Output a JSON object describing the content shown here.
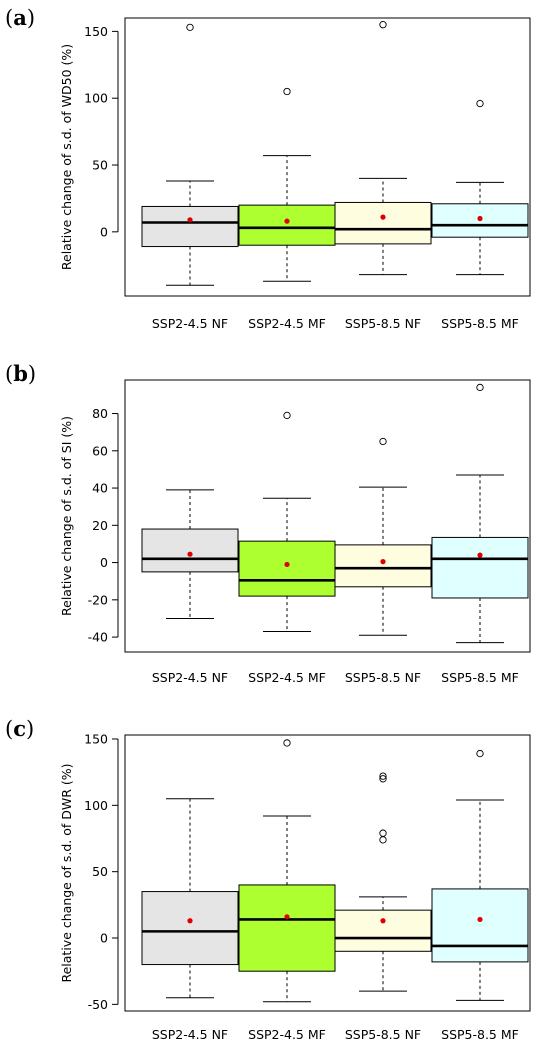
{
  "categories": [
    "SSP2-4.5 NF",
    "SSP2-4.5 MF",
    "SSP5-8.5 NF",
    "SSP5-8.5 MF"
  ],
  "category_colors": [
    "#e5e5e5",
    "#adff2f",
    "#fffde0",
    "#e0ffff"
  ],
  "mean_marker_color": "#e00000",
  "chart_data": [
    {
      "type": "box",
      "panel": "a",
      "ylabel": "Relative change of s.d. of WD50 (%)",
      "ylim": [
        -48,
        160
      ],
      "yticks": [
        0,
        50,
        100,
        150
      ],
      "categories": [
        "SSP2-4.5 NF",
        "SSP2-4.5 MF",
        "SSP5-8.5 NF",
        "SSP5-8.5 MF"
      ],
      "boxes": [
        {
          "name": "SSP2-4.5 NF",
          "whisker_low": -40,
          "q1": -11,
          "median": 7,
          "q3": 19,
          "whisker_high": 38,
          "mean": 9,
          "outliers": [
            153
          ]
        },
        {
          "name": "SSP2-4.5 MF",
          "whisker_low": -37,
          "q1": -10,
          "median": 3,
          "q3": 20,
          "whisker_high": 57,
          "mean": 8,
          "outliers": [
            105
          ]
        },
        {
          "name": "SSP5-8.5 NF",
          "whisker_low": -32,
          "q1": -9,
          "median": 2,
          "q3": 22,
          "whisker_high": 40,
          "mean": 11,
          "outliers": [
            155
          ]
        },
        {
          "name": "SSP5-8.5 MF",
          "whisker_low": -32,
          "q1": -4,
          "median": 5,
          "q3": 21,
          "whisker_high": 37,
          "mean": 10,
          "outliers": [
            96
          ]
        }
      ]
    },
    {
      "type": "box",
      "panel": "b",
      "ylabel": "Relative change of s.d. of SI (%)",
      "ylim": [
        -48,
        98
      ],
      "yticks": [
        -40,
        -20,
        0,
        20,
        40,
        60,
        80
      ],
      "categories": [
        "SSP2-4.5 NF",
        "SSP2-4.5 MF",
        "SSP5-8.5 NF",
        "SSP5-8.5 MF"
      ],
      "boxes": [
        {
          "name": "SSP2-4.5 NF",
          "whisker_low": -30,
          "q1": -5,
          "median": 2,
          "q3": 18,
          "whisker_high": 39,
          "mean": 4.5,
          "outliers": []
        },
        {
          "name": "SSP2-4.5 MF",
          "whisker_low": -37,
          "q1": -18,
          "median": -9.5,
          "q3": 11.5,
          "whisker_high": 34.5,
          "mean": -1,
          "outliers": [
            79
          ]
        },
        {
          "name": "SSP5-8.5 NF",
          "whisker_low": -39,
          "q1": -13,
          "median": -3,
          "q3": 9.5,
          "whisker_high": 40.5,
          "mean": 0.5,
          "outliers": [
            65
          ]
        },
        {
          "name": "SSP5-8.5 MF",
          "whisker_low": -43,
          "q1": -19,
          "median": 2,
          "q3": 13.5,
          "whisker_high": 47,
          "mean": 4,
          "outliers": [
            94
          ]
        }
      ]
    },
    {
      "type": "box",
      "panel": "c",
      "ylabel": "Relative change of s.d. of DWR (%)",
      "ylim": [
        -55,
        153
      ],
      "yticks": [
        -50,
        0,
        50,
        100,
        150
      ],
      "categories": [
        "SSP2-4.5 NF",
        "SSP2-4.5 MF",
        "SSP5-8.5 NF",
        "SSP5-8.5 MF"
      ],
      "boxes": [
        {
          "name": "SSP2-4.5 NF",
          "whisker_low": -45,
          "q1": -20,
          "median": 5,
          "q3": 35,
          "whisker_high": 105,
          "mean": 13,
          "outliers": []
        },
        {
          "name": "SSP2-4.5 MF",
          "whisker_low": -48,
          "q1": -25,
          "median": 14,
          "q3": 40,
          "whisker_high": 92,
          "mean": 16,
          "outliers": [
            147
          ]
        },
        {
          "name": "SSP5-8.5 NF",
          "whisker_low": -40,
          "q1": -10,
          "median": 0,
          "q3": 21,
          "whisker_high": 31,
          "mean": 13,
          "outliers": [
            122,
            120,
            79,
            74
          ]
        },
        {
          "name": "SSP5-8.5 MF",
          "whisker_low": -47,
          "q1": -18,
          "median": -6,
          "q3": 37,
          "whisker_high": 104,
          "mean": 14,
          "outliers": [
            139
          ]
        }
      ]
    }
  ],
  "panel_labels": [
    {
      "open": "(",
      "letter": "a",
      "close": ")"
    },
    {
      "open": "(",
      "letter": "b",
      "close": ")"
    },
    {
      "open": "(",
      "letter": "c",
      "close": ")"
    }
  ]
}
